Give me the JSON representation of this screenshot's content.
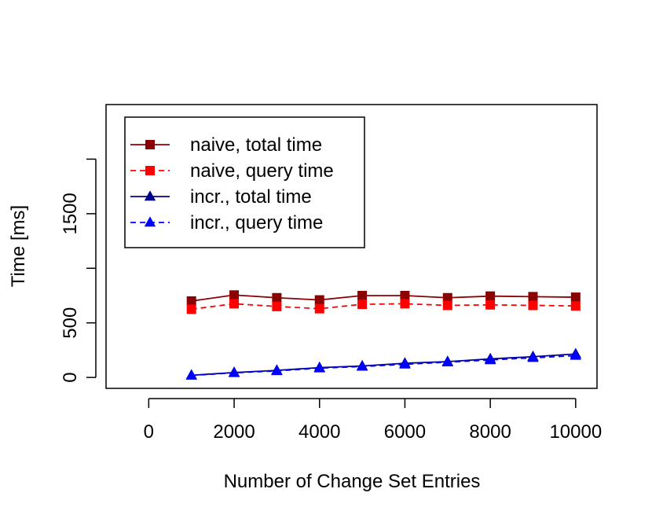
{
  "chart_data": {
    "type": "line",
    "title": "",
    "xlabel": "Number of Change Set Entries",
    "ylabel": "Time [ms]",
    "xlim": [
      -1000,
      10500
    ],
    "ylim": [
      -100,
      2500
    ],
    "x_ticks": [
      0,
      2000,
      4000,
      6000,
      8000,
      10000
    ],
    "x_tick_labels": [
      "0",
      "2000",
      "4000",
      "6000",
      "8000",
      "10000"
    ],
    "y_ticks": [
      0,
      500,
      1000,
      1500,
      2000
    ],
    "y_tick_labels": [
      "0",
      "500",
      "",
      "1500",
      ""
    ],
    "grid": false,
    "legend_position": "top-left",
    "x": [
      1000,
      2000,
      3000,
      4000,
      5000,
      6000,
      7000,
      8000,
      9000,
      10000
    ],
    "series": [
      {
        "name": "naive, total time",
        "color": "#8B0000",
        "line_style": "solid",
        "marker": "square",
        "values": [
          700,
          755,
          730,
          710,
          750,
          750,
          730,
          745,
          740,
          735
        ]
      },
      {
        "name": "naive, query time",
        "color": "#FF0000",
        "line_style": "dashed",
        "marker": "square",
        "values": [
          625,
          675,
          650,
          630,
          670,
          675,
          660,
          665,
          660,
          655
        ]
      },
      {
        "name": "incr., total time",
        "color": "#00008B",
        "line_style": "solid",
        "marker": "triangle",
        "values": [
          20,
          45,
          65,
          90,
          105,
          130,
          145,
          170,
          190,
          215
        ]
      },
      {
        "name": "incr., query time",
        "color": "#0000FF",
        "line_style": "dashed",
        "marker": "triangle",
        "values": [
          18,
          42,
          60,
          85,
          100,
          120,
          140,
          160,
          180,
          200
        ]
      }
    ]
  }
}
